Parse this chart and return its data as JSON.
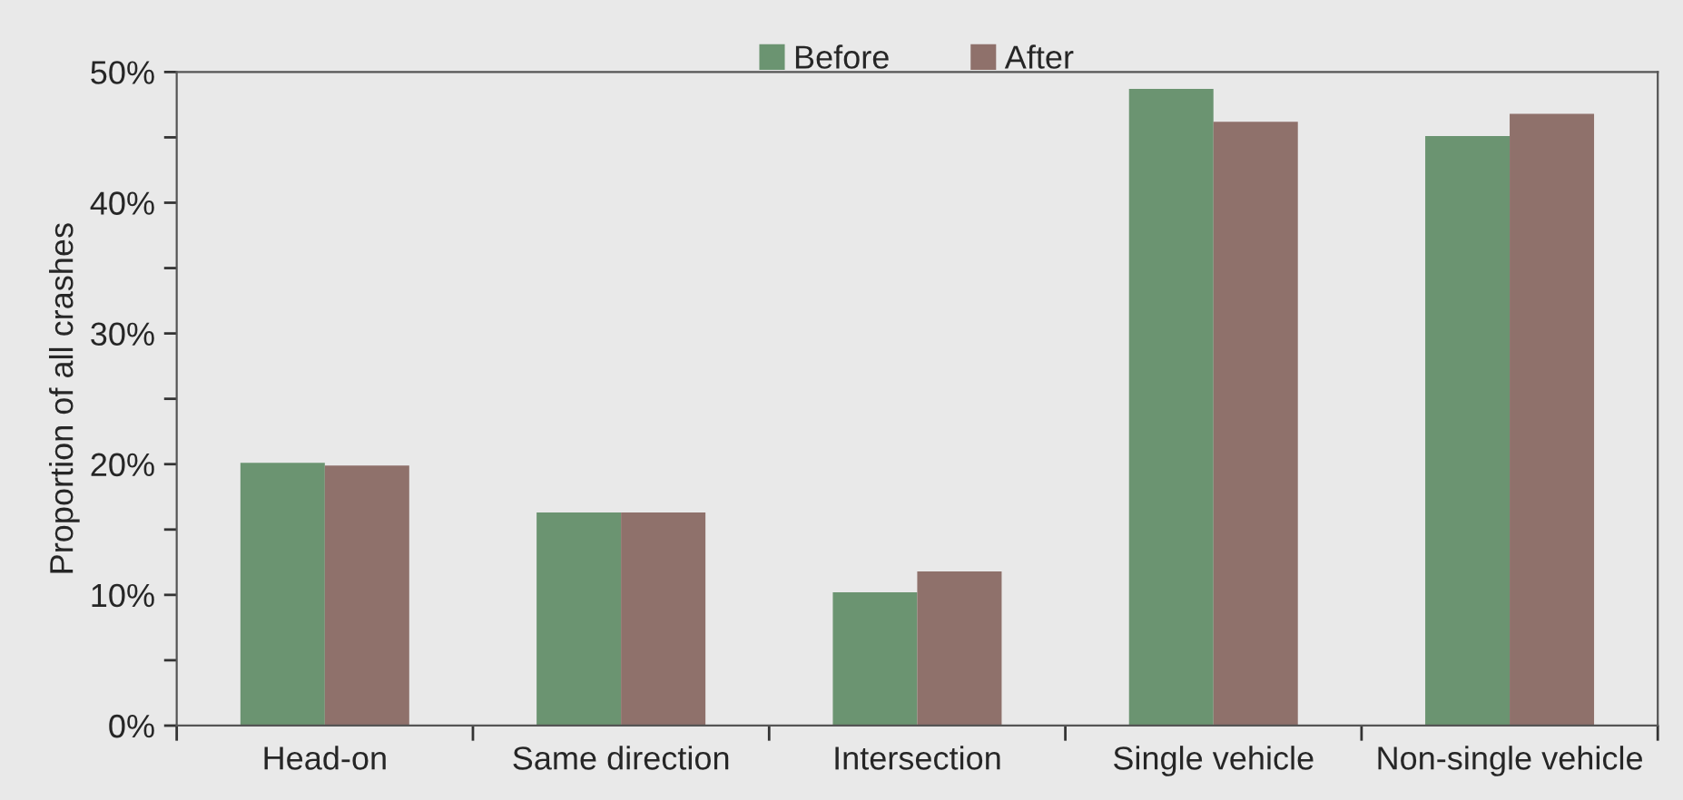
{
  "chart_data": {
    "type": "bar",
    "ylabel": "Proportion of all crashes",
    "categories": [
      "Head-on",
      "Same direction",
      "Intersection",
      "Single vehicle",
      "Non-single vehicle"
    ],
    "series": [
      {
        "name": "Before",
        "color": "#6b9471",
        "values": [
          20.1,
          16.3,
          10.2,
          48.7,
          45.1
        ]
      },
      {
        "name": "After",
        "color": "#8f716b",
        "values": [
          19.9,
          16.3,
          11.8,
          46.2,
          46.8
        ]
      }
    ],
    "ylim": [
      0,
      50
    ],
    "yticks": [
      {
        "value": 0,
        "label": "0%"
      },
      {
        "value": 5,
        "label": null
      },
      {
        "value": 10,
        "label": "10%"
      },
      {
        "value": 15,
        "label": null
      },
      {
        "value": 20,
        "label": "20%"
      },
      {
        "value": 25,
        "label": null
      },
      {
        "value": 30,
        "label": "30%"
      },
      {
        "value": 35,
        "label": null
      },
      {
        "value": 40,
        "label": "40%"
      },
      {
        "value": 45,
        "label": null
      },
      {
        "value": 50,
        "label": "50%"
      }
    ],
    "grid": false,
    "legend": "top"
  }
}
